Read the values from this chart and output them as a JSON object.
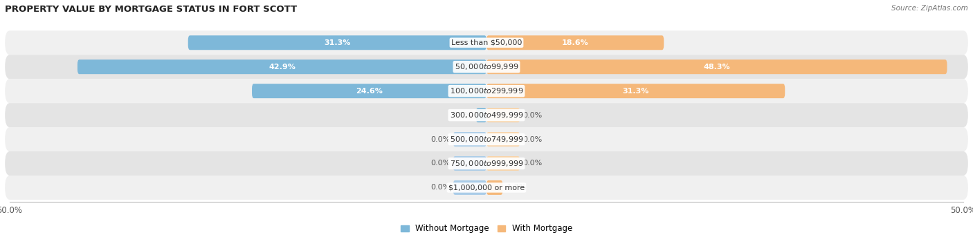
{
  "title": "PROPERTY VALUE BY MORTGAGE STATUS IN FORT SCOTT",
  "source": "Source: ZipAtlas.com",
  "categories": [
    "Less than $50,000",
    "$50,000 to $99,999",
    "$100,000 to $299,999",
    "$300,000 to $499,999",
    "$500,000 to $749,999",
    "$750,000 to $999,999",
    "$1,000,000 or more"
  ],
  "without_mortgage": [
    31.3,
    42.9,
    24.6,
    1.1,
    0.0,
    0.0,
    0.0
  ],
  "with_mortgage": [
    18.6,
    48.3,
    31.3,
    0.0,
    0.0,
    0.0,
    1.7
  ],
  "color_without": "#7EB8D9",
  "color_with": "#F5B87A",
  "color_without_stub": "#AACCE8",
  "color_with_stub": "#F9D4A8",
  "color_row_bg_light": "#F0F0F0",
  "color_row_bg_dark": "#E4E4E4",
  "axis_limit": 50.0,
  "bar_height": 0.6,
  "stub_size": 3.5,
  "label_fontsize": 8.0,
  "title_fontsize": 9.5,
  "legend_fontsize": 8.5,
  "cat_fontsize": 8.0
}
